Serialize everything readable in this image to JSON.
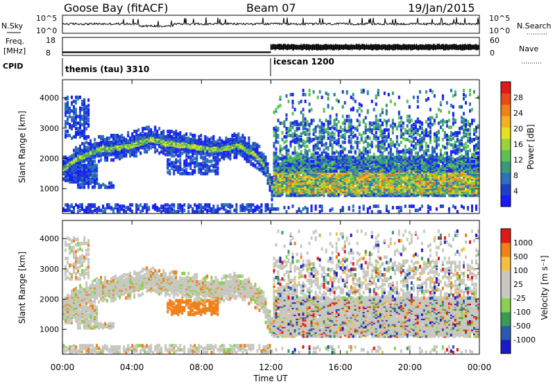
{
  "header": {
    "station": "Goose Bay (fitACF)",
    "beam": "Beam 07",
    "date": "19/Jan/2015"
  },
  "strips": {
    "nsky_label": "N.Sky",
    "nsky_ticks": [
      "10^5",
      "10^0"
    ],
    "nsearch_label": "N.Search",
    "nsearch_ticks": [
      "10^5",
      "10^0"
    ],
    "freq_label": "Freq.",
    "freq_unit": "[MHz]",
    "freq_ticks": [
      "18",
      "8"
    ],
    "nave_label": "Nave",
    "nave_ticks": [
      "60",
      "0"
    ],
    "cpid_label": "CPID",
    "cpid_modes": [
      "themis (tau) 3310",
      "icescan 1200"
    ]
  },
  "colors": {
    "power": [
      "#1a1aff",
      "#1f40c8",
      "#2b72b8",
      "#3a9a78",
      "#5ac05a",
      "#9ad23a",
      "#e6e020",
      "#f5b020",
      "#f08018",
      "#ea4a18",
      "#e01818"
    ],
    "velocity": [
      "#e01818",
      "#f08018",
      "#f5c040",
      "#c8c8c0",
      "#c8c8c0",
      "#8ad050",
      "#3a9a58",
      "#2a5ab0",
      "#1a1acc"
    ]
  },
  "chart_data": [
    {
      "type": "heatmap",
      "title": "",
      "xlabel": "",
      "ylabel": "Slant Range [km]",
      "x_ticks": [
        "00:00",
        "04:00",
        "08:00",
        "12:00",
        "16:00",
        "20:00",
        "00:00"
      ],
      "xlim": [
        0,
        24
      ],
      "ylim": [
        180,
        4600
      ],
      "y_ticks": [
        1000,
        2000,
        3000,
        4000
      ],
      "colorbar": {
        "label": "Power [dB]",
        "ticks": [
          "4",
          "8",
          "12",
          "16",
          "20",
          "24",
          "28"
        ],
        "range": [
          0,
          30
        ]
      },
      "echo_band_centre_km": {
        "x": [
          0,
          1,
          2,
          3,
          4,
          5,
          6,
          7,
          8,
          9,
          10,
          11,
          11.5,
          12
        ],
        "y": [
          1650,
          2000,
          2250,
          2300,
          2400,
          2600,
          2450,
          2400,
          2300,
          2250,
          2400,
          2100,
          1800,
          1000
        ]
      }
    },
    {
      "type": "heatmap",
      "title": "",
      "xlabel": "Time UT",
      "ylabel": "Slant Range [km]",
      "x_ticks": [
        "00:00",
        "04:00",
        "08:00",
        "12:00",
        "16:00",
        "20:00",
        "00:00"
      ],
      "xlim": [
        0,
        24
      ],
      "ylim": [
        180,
        4600
      ],
      "y_ticks": [
        1000,
        2000,
        3000,
        4000
      ],
      "colorbar": {
        "label": "Velocity [m s⁻¹]",
        "ticks": [
          "1000",
          "500",
          "100",
          "25",
          "-25",
          "-100",
          "-500",
          "-1000"
        ]
      }
    }
  ]
}
